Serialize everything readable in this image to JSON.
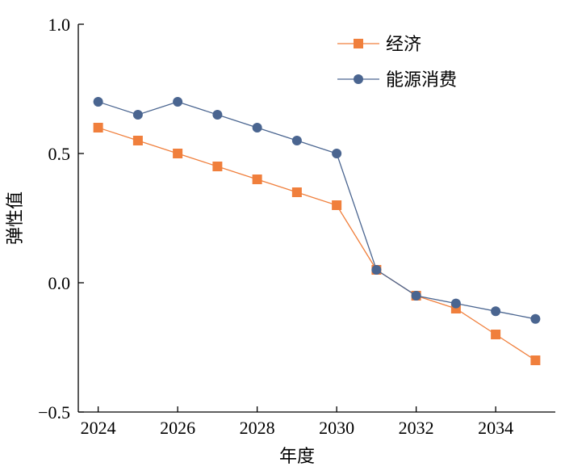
{
  "chart_data": {
    "type": "line",
    "title": "",
    "xlabel": "年度",
    "ylabel": "弹性值",
    "x": [
      2024,
      2025,
      2026,
      2027,
      2028,
      2029,
      2030,
      2031,
      2032,
      2033,
      2034,
      2035
    ],
    "xticks": [
      "2024",
      "2026",
      "2028",
      "2030",
      "2032",
      "2034"
    ],
    "yticks": [
      "−0.5",
      "0.0",
      "0.5",
      "1.0"
    ],
    "ylim": [
      -0.5,
      1.0
    ],
    "xlim": [
      2023.5,
      2035.5
    ],
    "grid": false,
    "legend_position": "top-right",
    "series": [
      {
        "name": "经济",
        "color": "#f07f3c",
        "marker": "square",
        "values": [
          0.6,
          0.55,
          0.5,
          0.45,
          0.4,
          0.35,
          0.3,
          0.05,
          -0.05,
          -0.1,
          -0.2,
          -0.3
        ]
      },
      {
        "name": "能源消费",
        "color": "#4a6590",
        "marker": "circle",
        "values": [
          0.7,
          0.65,
          0.7,
          0.65,
          0.6,
          0.55,
          0.5,
          0.05,
          -0.05,
          -0.08,
          -0.11,
          -0.14
        ]
      }
    ]
  }
}
